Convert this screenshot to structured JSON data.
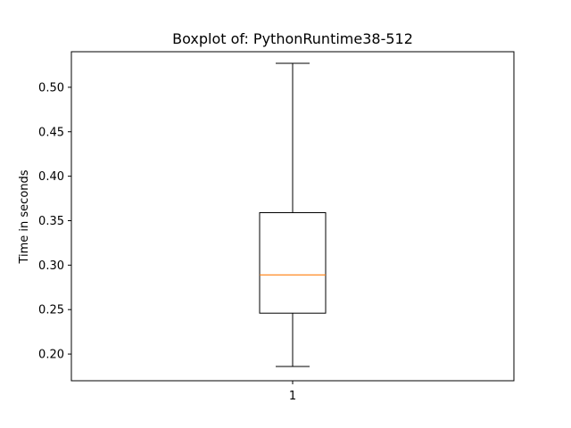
{
  "chart_data": {
    "type": "boxplot",
    "title": "Boxplot of: PythonRuntime38-512",
    "xlabel": "",
    "ylabel": "Time in seconds",
    "ylim": [
      0.17,
      0.54
    ],
    "y_ticks": [
      0.2,
      0.25,
      0.3,
      0.35,
      0.4,
      0.45,
      0.5
    ],
    "x_ticks": [
      "1"
    ],
    "grid": false,
    "colors": {
      "box": "#000000",
      "median": "#ff7f0e",
      "whisker": "#000000"
    },
    "boxes": [
      {
        "category": "1",
        "whisker_low": 0.186,
        "q1": 0.246,
        "median": 0.289,
        "q3": 0.359,
        "whisker_high": 0.527
      }
    ]
  }
}
